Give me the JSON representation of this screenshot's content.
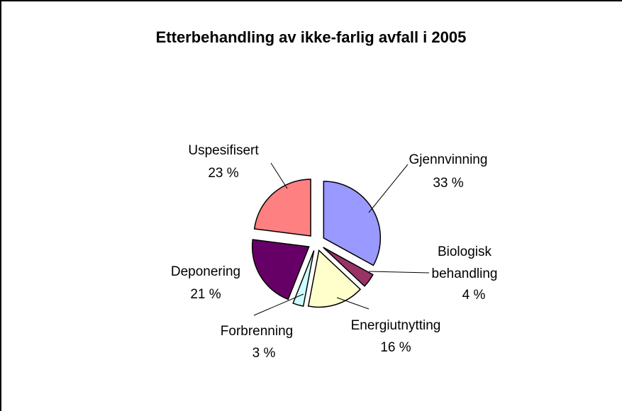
{
  "chart_data": {
    "type": "pie",
    "title": "Etterbehandling av ikke-farlig avfall i 2005",
    "categories": [
      "Gjennvinning",
      "Biologisk behandling",
      "Energiutnytting",
      "Forbrenning",
      "Deponering",
      "Uspesifisert"
    ],
    "values": [
      33,
      4,
      16,
      3,
      21,
      23
    ],
    "value_labels": [
      "33 %",
      "4 %",
      "16 %",
      "3 %",
      "21 %",
      "23 %"
    ],
    "colors": [
      "#9999ff",
      "#993366",
      "#ffffcc",
      "#ccffff",
      "#660066",
      "#ff8080"
    ]
  }
}
